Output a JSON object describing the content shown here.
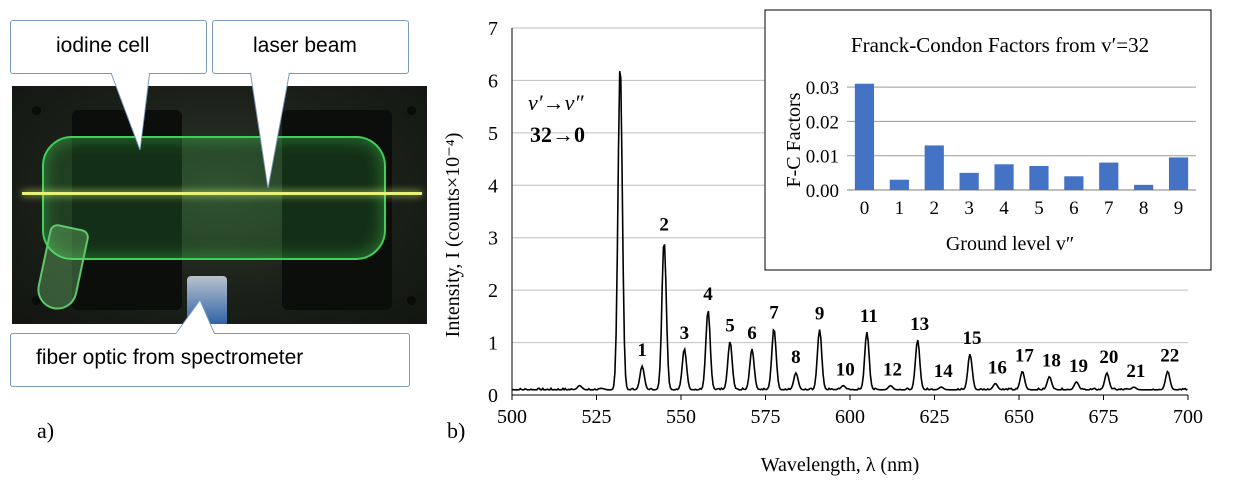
{
  "photo_panel": {
    "label": "a)",
    "callouts": {
      "iodine_cell": "iodine cell",
      "laser_beam": "laser beam",
      "fiber_optic": "fiber optic from spectrometer"
    }
  },
  "spectrum_panel": {
    "label": "b)"
  },
  "colors": {
    "bar_fill": "#4472c4",
    "callout_border": "#7a9bbd",
    "beam": "#e7f27a",
    "cell_glow": "#3fd05a"
  },
  "chart_data": [
    {
      "type": "line",
      "xlabel": "Wavelength, λ (nm)",
      "ylabel": "Intensity, I (counts×10⁻⁴)",
      "xlim": [
        500,
        700
      ],
      "ylim": [
        0,
        7
      ],
      "xticks": [
        "500",
        "525",
        "550",
        "575",
        "600",
        "625",
        "650",
        "675",
        "700"
      ],
      "yticks": [
        "0",
        "1",
        "2",
        "3",
        "4",
        "5",
        "6",
        "7"
      ],
      "grid": "horizontal",
      "annotation_lines": [
        "v′→v″",
        "32→0"
      ],
      "baseline": 0.1,
      "peaks": [
        {
          "x": 520,
          "y": 0.18,
          "label": ""
        },
        {
          "x": 532,
          "y": 6.35,
          "label": ""
        },
        {
          "x": 538.5,
          "y": 0.55,
          "label": "1"
        },
        {
          "x": 545,
          "y": 2.95,
          "label": "2"
        },
        {
          "x": 551,
          "y": 0.88,
          "label": "3"
        },
        {
          "x": 558,
          "y": 1.62,
          "label": "4"
        },
        {
          "x": 564.5,
          "y": 1.02,
          "label": "5"
        },
        {
          "x": 571,
          "y": 0.88,
          "label": "6"
        },
        {
          "x": 577.5,
          "y": 1.27,
          "label": "7"
        },
        {
          "x": 584,
          "y": 0.42,
          "label": "8"
        },
        {
          "x": 591,
          "y": 1.25,
          "label": "9"
        },
        {
          "x": 598,
          "y": 0.18,
          "label": "10"
        },
        {
          "x": 605,
          "y": 1.2,
          "label": "11"
        },
        {
          "x": 612,
          "y": 0.18,
          "label": "12"
        },
        {
          "x": 620,
          "y": 1.05,
          "label": "13"
        },
        {
          "x": 627,
          "y": 0.15,
          "label": "14"
        },
        {
          "x": 635.5,
          "y": 0.78,
          "label": "15"
        },
        {
          "x": 643,
          "y": 0.22,
          "label": "16"
        },
        {
          "x": 651,
          "y": 0.45,
          "label": "17"
        },
        {
          "x": 659,
          "y": 0.35,
          "label": "18"
        },
        {
          "x": 667,
          "y": 0.25,
          "label": "19"
        },
        {
          "x": 676,
          "y": 0.42,
          "label": "20"
        },
        {
          "x": 684,
          "y": 0.15,
          "label": "21"
        },
        {
          "x": 694,
          "y": 0.45,
          "label": "22"
        }
      ]
    },
    {
      "type": "bar",
      "title": "Franck-Condon Factors from v′=32",
      "xlabel": "Ground level v″",
      "ylabel": "F-C Factors",
      "categories": [
        "0",
        "1",
        "2",
        "3",
        "4",
        "5",
        "6",
        "7",
        "8",
        "9"
      ],
      "values": [
        0.031,
        0.003,
        0.013,
        0.005,
        0.0075,
        0.007,
        0.004,
        0.008,
        0.0015,
        0.0095
      ],
      "ylim": [
        0,
        0.035
      ],
      "yticks": [
        "0.00",
        "0.01",
        "0.02",
        "0.03"
      ],
      "grid": "horizontal"
    }
  ]
}
